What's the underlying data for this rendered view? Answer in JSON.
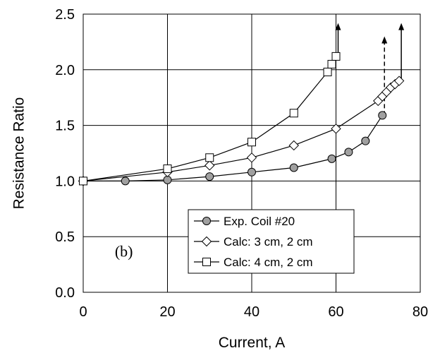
{
  "chart_data": {
    "type": "line",
    "title": "",
    "xlabel": "Current, A",
    "ylabel": "Resistance Ratio",
    "xlim": [
      0,
      80
    ],
    "ylim": [
      0.0,
      2.5
    ],
    "xticks": [
      0,
      20,
      40,
      60,
      80
    ],
    "xtick_labels": [
      "0",
      "20",
      "40",
      "60",
      "80"
    ],
    "yticks": [
      0.0,
      0.5,
      1.0,
      1.5,
      2.0,
      2.5
    ],
    "ytick_labels": [
      "0.0",
      "0.5",
      "1.0",
      "1.5",
      "2.0",
      "2.5"
    ],
    "grid": true,
    "legend_position": "bottom-right",
    "annotation": "(b)",
    "series": [
      {
        "name": "Exp. Coil #20",
        "marker": "circle",
        "marker_fill": "#a0a0a0",
        "x": [
          0,
          10,
          20,
          30,
          40,
          50,
          59,
          63,
          67,
          71
        ],
        "y": [
          1.0,
          1.0,
          1.01,
          1.04,
          1.08,
          1.12,
          1.2,
          1.26,
          1.36,
          1.59
        ],
        "runaway_arrow": {
          "x": 71.5,
          "from": 1.59,
          "to": 2.3,
          "style": "dashed"
        }
      },
      {
        "name": "Calc: 3 cm, 2 cm",
        "marker": "diamond",
        "marker_fill": "#ffffff",
        "x": [
          0,
          20,
          30,
          40,
          50,
          60,
          70,
          71,
          72,
          73,
          74,
          75
        ],
        "y": [
          1.0,
          1.08,
          1.14,
          1.21,
          1.32,
          1.47,
          1.72,
          1.76,
          1.8,
          1.84,
          1.87,
          1.9
        ],
        "runaway_arrow": {
          "x": 75.5,
          "from": 1.9,
          "to": 2.42,
          "style": "solid"
        }
      },
      {
        "name": "Calc: 4 cm, 2 cm",
        "marker": "square",
        "marker_fill": "#ffffff",
        "x": [
          0,
          20,
          30,
          40,
          50,
          58,
          59,
          60
        ],
        "y": [
          1.0,
          1.11,
          1.21,
          1.35,
          1.61,
          1.98,
          2.05,
          2.12
        ],
        "runaway_arrow": {
          "x": 60.5,
          "from": 2.12,
          "to": 2.42,
          "style": "solid"
        }
      }
    ]
  }
}
